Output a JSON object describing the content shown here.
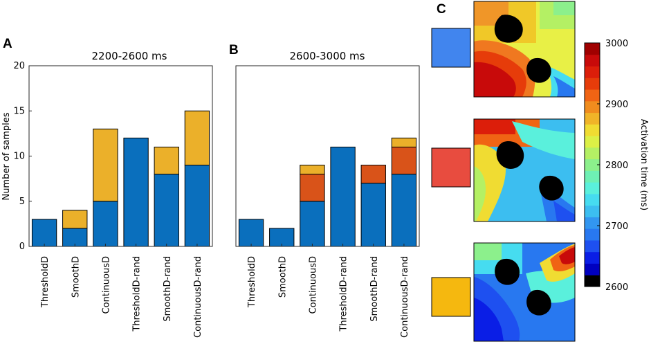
{
  "colors": {
    "blue": "#0a6fbd",
    "orange": "#d95319",
    "yellow": "#ebb02a",
    "swatch_blue": "#4185ee",
    "swatch_red": "#e84c3f",
    "swatch_yellow": "#f5b80f"
  },
  "panel_letters": {
    "a": "A",
    "b": "B",
    "c": "C"
  },
  "chart_data": [
    {
      "type": "bar",
      "stacked": true,
      "id": "A",
      "title": "2200-2600 ms",
      "ylabel": "Number of samples",
      "xlabel": "",
      "ylim": [
        0,
        20
      ],
      "yticks": [
        0,
        5,
        10,
        15,
        20
      ],
      "categories": [
        "ThresholdD",
        "SmoothD",
        "ContinuousD",
        "ThresholdD-rand",
        "SmoothD-rand",
        "ContinuousD-rand"
      ],
      "series": [
        {
          "name": "blue",
          "color": "#0a6fbd",
          "values": [
            3,
            2,
            5,
            12,
            8,
            9
          ]
        },
        {
          "name": "yellow",
          "color": "#ebb02a",
          "values": [
            0,
            2,
            8,
            0,
            3,
            6
          ]
        }
      ]
    },
    {
      "type": "bar",
      "stacked": true,
      "id": "B",
      "title": "2600-3000 ms",
      "ylabel": "",
      "xlabel": "",
      "ylim": [
        0,
        20
      ],
      "yticks": [],
      "categories": [
        "ThresholdD",
        "SmoothD",
        "ContinuousD",
        "ThresholdD-rand",
        "SmoothD-rand",
        "ContinuousD-rand"
      ],
      "series": [
        {
          "name": "blue",
          "color": "#0a6fbd",
          "values": [
            3,
            2,
            5,
            11,
            7,
            8
          ]
        },
        {
          "name": "orange",
          "color": "#d95319",
          "values": [
            0,
            0,
            3,
            0,
            2,
            3
          ]
        },
        {
          "name": "yellow",
          "color": "#ebb02a",
          "values": [
            0,
            0,
            1,
            0,
            0,
            1
          ]
        }
      ]
    }
  ],
  "colorbar": {
    "label": "Activation time (ms)",
    "range": [
      2600,
      3000
    ],
    "ticks": [
      "3000",
      "2900",
      "2800",
      "2700",
      "2600"
    ],
    "colors": [
      "#000000",
      "#0000c0",
      "#0a1ee6",
      "#1e50f0",
      "#2878f0",
      "#3296f0",
      "#3cbef0",
      "#46dcf0",
      "#5af0dc",
      "#6ef0b4",
      "#8cf08c",
      "#b4f064",
      "#dcf046",
      "#f0dc32",
      "#f0b428",
      "#f08c1e",
      "#f06414",
      "#e63c0a",
      "#dc1e0a",
      "#c80a0a",
      "#a00000"
    ]
  },
  "maps": [
    {
      "name": "blue-sample-map",
      "swatch": "#4185ee"
    },
    {
      "name": "red-sample-map",
      "swatch": "#e84c3f"
    },
    {
      "name": "yellow-sample-map",
      "swatch": "#f5b80f"
    }
  ]
}
